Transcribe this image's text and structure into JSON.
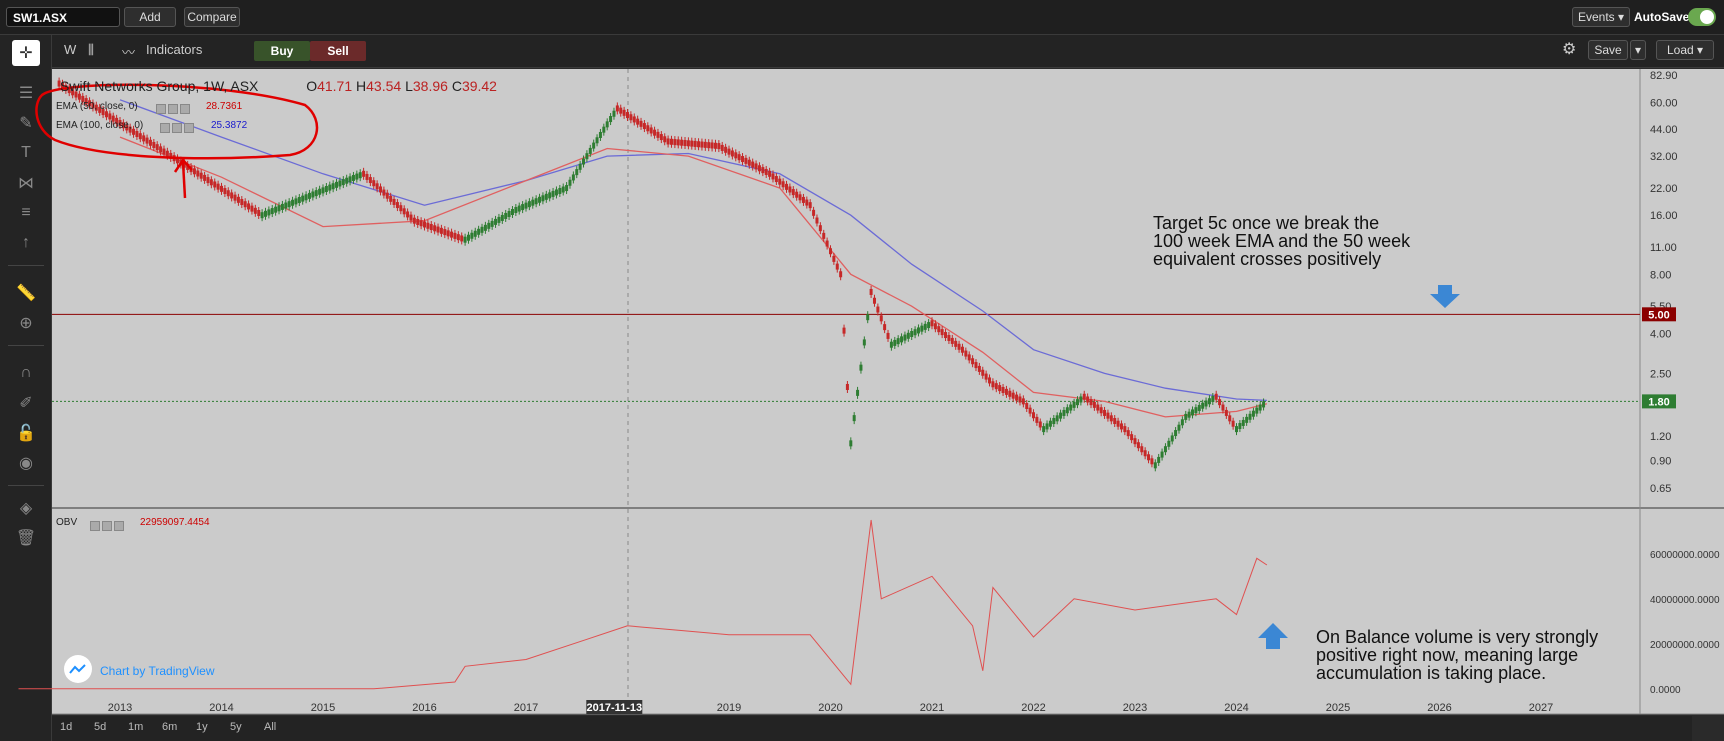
{
  "toolbar": {
    "symbol": "SW1.ASX",
    "add_label": "Add",
    "compare_label": "Compare",
    "events_label": "Events ▾",
    "autosave_label": "AutoSave"
  },
  "subbar": {
    "interval": "W",
    "indicators_label": "Indicators",
    "buy_label": "Buy",
    "sell_label": "Sell",
    "save_label": "Save",
    "load_label": "Load ▾"
  },
  "legend": {
    "title": "Swift Networks Group, 1W, ASX",
    "o_label": "O",
    "o_value": "41.71",
    "h_label": "H",
    "h_value": "43.54",
    "l_label": "L",
    "l_value": "38.96",
    "c_label": "C",
    "c_value": "39.42",
    "ema50_label": "EMA (50, close, 0)",
    "ema50_value": "28.7361",
    "ema100_label": "EMA (100, close, 0)",
    "ema100_value": "25.3872",
    "obv_label": "OBV",
    "obv_value": "22959097.4454"
  },
  "annotations": {
    "target_text": "Target 5c once we break the\n100 week EMA and the 50 week\nequivalent crosses positively",
    "obv_text": "On Balance volume is very strongly\npositive right now, meaning large\naccumulation is taking place."
  },
  "branding": {
    "chart_by": "Chart by TradingView"
  },
  "range_buttons": [
    "1d",
    "5d",
    "1m",
    "6m",
    "1y",
    "5y",
    "All"
  ],
  "colors": {
    "ema50": "#e06060",
    "ema100": "#6b6bd6",
    "candle_up": "#2e7d32",
    "candle_down": "#c62828",
    "obv_line": "#e05050",
    "annotation_circle": "#e00000",
    "arrow": "#3b87d4",
    "price_label_red": "#8b0000",
    "price_label_green": "#2e7d32"
  },
  "chart_data": [
    {
      "type": "line",
      "title": "Swift Networks Group, 1W, ASX",
      "price_scale": "log",
      "ylim": [
        0.6,
        82.9
      ],
      "y_ticks": [
        "82.90",
        "60.00",
        "44.00",
        "32.00",
        "22.00",
        "16.00",
        "11.00",
        "8.00",
        "5.50",
        "4.00",
        "2.50",
        "1.80",
        "1.20",
        "0.90",
        "0.65"
      ],
      "x_ticks": [
        "2013",
        "2014",
        "2015",
        "2016",
        "2017",
        "2017-11-13",
        "2019",
        "2020",
        "2021",
        "2022",
        "2023",
        "2024",
        "2025",
        "2026",
        "2027"
      ],
      "horizontal_lines": [
        {
          "value": 5.0,
          "label": "5.00"
        },
        {
          "value": 1.8,
          "label": "1.80"
        }
      ],
      "series": [
        {
          "name": "EMA (50, close, 0)",
          "points": [
            [
              2013,
              40
            ],
            [
              2014,
              25
            ],
            [
              2015,
              14
            ],
            [
              2016,
              15
            ],
            [
              2017,
              24
            ],
            [
              2017.8,
              35
            ],
            [
              2018.6,
              32
            ],
            [
              2019.5,
              22
            ],
            [
              2020.2,
              8
            ],
            [
              2020.8,
              5.5
            ],
            [
              2021.5,
              3.2
            ],
            [
              2022,
              2.0
            ],
            [
              2022.7,
              1.8
            ],
            [
              2023.3,
              1.5
            ],
            [
              2024,
              1.6
            ],
            [
              2024.3,
              1.75
            ]
          ]
        },
        {
          "name": "EMA (100, close, 0)",
          "points": [
            [
              2013,
              62
            ],
            [
              2014,
              40
            ],
            [
              2015,
              26
            ],
            [
              2016,
              18
            ],
            [
              2017,
              24
            ],
            [
              2017.8,
              32
            ],
            [
              2018.6,
              33
            ],
            [
              2019.5,
              26
            ],
            [
              2020.2,
              16
            ],
            [
              2020.8,
              9
            ],
            [
              2021.5,
              5.2
            ],
            [
              2022,
              3.3
            ],
            [
              2022.7,
              2.5
            ],
            [
              2023.3,
              2.1
            ],
            [
              2024,
              1.85
            ],
            [
              2024.3,
              1.82
            ]
          ]
        },
        {
          "name": "price",
          "points": [
            [
              2012.4,
              75
            ],
            [
              2014.4,
              16
            ],
            [
              2015.4,
              26
            ],
            [
              2015.9,
              15
            ],
            [
              2016.4,
              12
            ],
            [
              2016.9,
              17
            ],
            [
              2017.4,
              22
            ],
            [
              2017.9,
              56
            ],
            [
              2018.4,
              38
            ],
            [
              2018.9,
              36
            ],
            [
              2019.4,
              26
            ],
            [
              2019.8,
              18
            ],
            [
              2020.1,
              8
            ],
            [
              2020.2,
              1.1
            ],
            [
              2020.4,
              6.5
            ],
            [
              2020.6,
              3.5
            ],
            [
              2021.0,
              4.5
            ],
            [
              2021.3,
              3.3
            ],
            [
              2021.6,
              2.2
            ],
            [
              2021.9,
              1.8
            ],
            [
              2022.1,
              1.3
            ],
            [
              2022.5,
              1.9
            ],
            [
              2022.9,
              1.3
            ],
            [
              2023.2,
              0.85
            ],
            [
              2023.5,
              1.5
            ],
            [
              2023.8,
              1.9
            ],
            [
              2024.0,
              1.3
            ],
            [
              2024.3,
              1.8
            ]
          ]
        }
      ]
    },
    {
      "type": "line",
      "title": "OBV",
      "ylim": [
        -5000000,
        75000000
      ],
      "y_ticks": [
        "60000000.0000",
        "40000000.0000",
        "20000000.0000",
        "0.0000"
      ],
      "series": [
        {
          "name": "OBV",
          "points": [
            [
              2012,
              0
            ],
            [
              2015.5,
              0
            ],
            [
              2016.3,
              3000000
            ],
            [
              2016.4,
              10000000
            ],
            [
              2017.0,
              13000000
            ],
            [
              2017.6,
              22000000
            ],
            [
              2018.0,
              28000000
            ],
            [
              2018.5,
              26000000
            ],
            [
              2019.0,
              24000000
            ],
            [
              2019.8,
              24000000
            ],
            [
              2020.2,
              2000000
            ],
            [
              2020.4,
              75000000
            ],
            [
              2020.5,
              40000000
            ],
            [
              2021.0,
              50000000
            ],
            [
              2021.4,
              28000000
            ],
            [
              2021.5,
              8000000
            ],
            [
              2021.6,
              45000000
            ],
            [
              2022.0,
              23000000
            ],
            [
              2022.4,
              40000000
            ],
            [
              2023.0,
              35000000
            ],
            [
              2023.8,
              40000000
            ],
            [
              2024.0,
              33000000
            ],
            [
              2024.2,
              58000000
            ],
            [
              2024.3,
              55000000
            ]
          ]
        }
      ]
    }
  ]
}
